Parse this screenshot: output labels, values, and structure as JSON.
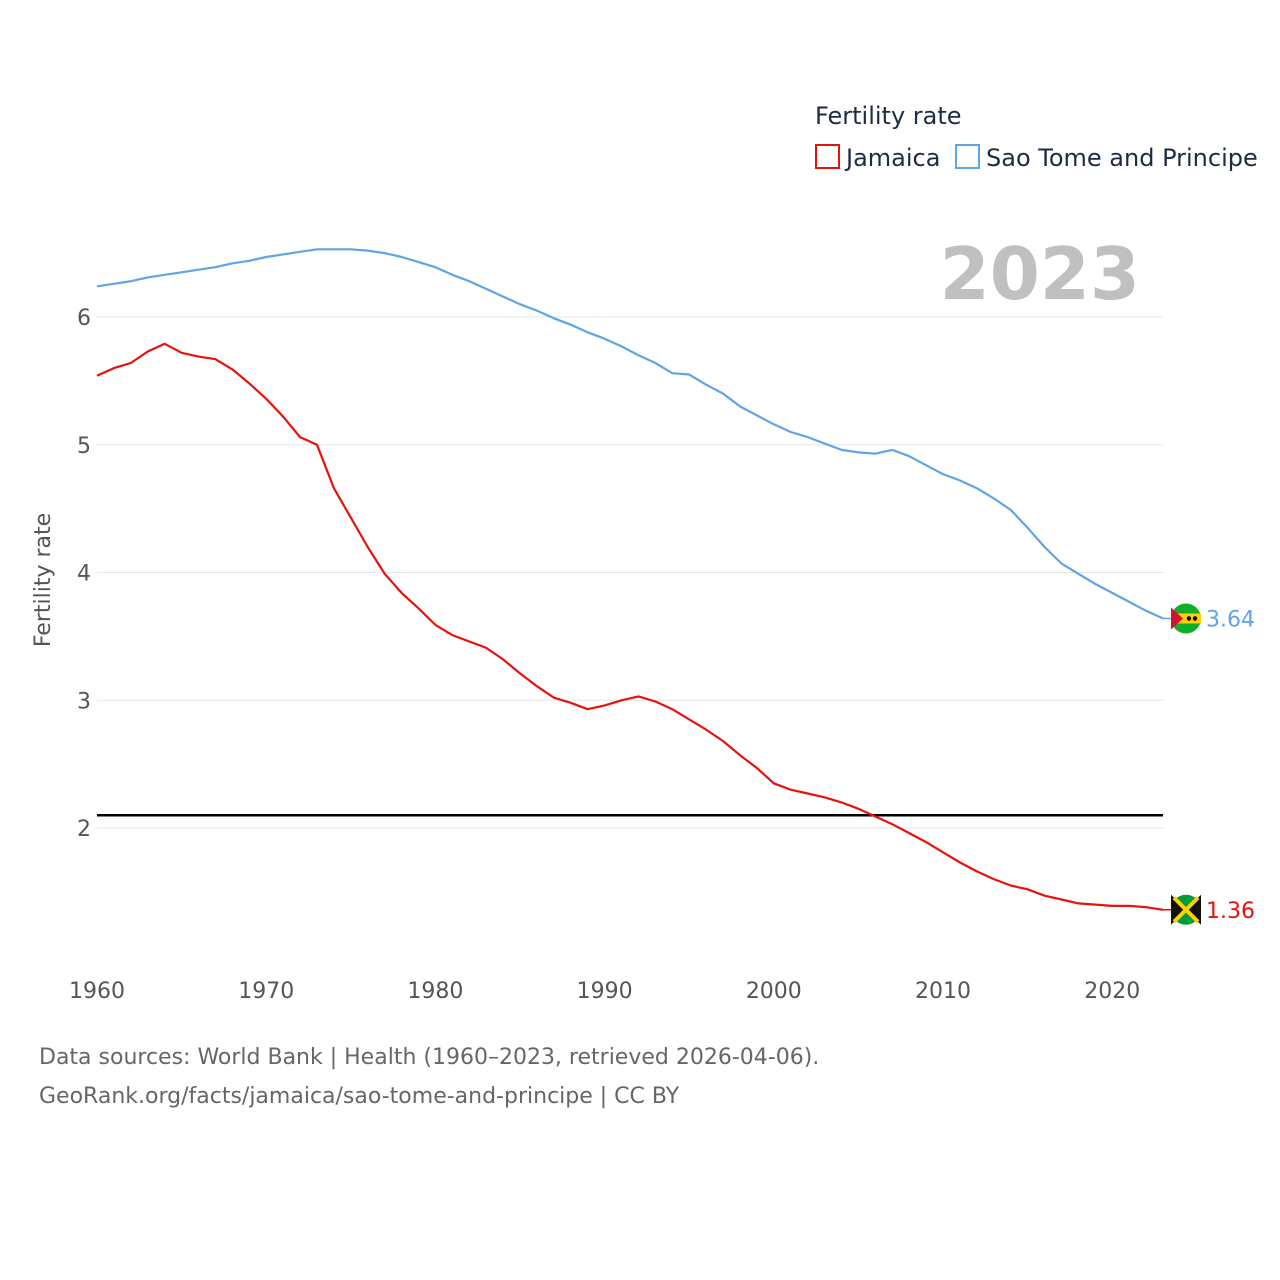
{
  "chart_data": {
    "type": "line",
    "legend_title": "Fertility rate",
    "ylabel": "Fertility rate",
    "xlim": [
      1960,
      2023
    ],
    "ylim": [
      1.0,
      7.0
    ],
    "yticks": [
      2,
      3,
      4,
      5,
      6
    ],
    "xticks": [
      1960,
      1970,
      1980,
      1990,
      2000,
      2010,
      2020
    ],
    "year_label": "2023",
    "reference_line": 2.1,
    "legend_position": "top-right",
    "series": [
      {
        "name": "Jamaica",
        "color": "#e8120c",
        "end_label": "1.36",
        "flag_icon": "jamaica-flag-icon",
        "x": [
          1960,
          1961,
          1962,
          1963,
          1964,
          1965,
          1966,
          1967,
          1968,
          1969,
          1970,
          1971,
          1972,
          1973,
          1974,
          1975,
          1976,
          1977,
          1978,
          1979,
          1980,
          1981,
          1982,
          1983,
          1984,
          1985,
          1986,
          1987,
          1988,
          1989,
          1990,
          1991,
          1992,
          1993,
          1994,
          1995,
          1996,
          1997,
          1998,
          1999,
          2000,
          2001,
          2002,
          2003,
          2004,
          2005,
          2006,
          2007,
          2008,
          2009,
          2010,
          2011,
          2012,
          2013,
          2014,
          2015,
          2016,
          2017,
          2018,
          2019,
          2020,
          2021,
          2022,
          2023
        ],
        "values": [
          5.54,
          5.6,
          5.64,
          5.73,
          5.79,
          5.72,
          5.69,
          5.67,
          5.59,
          5.48,
          5.36,
          5.22,
          5.06,
          5.0,
          4.66,
          4.43,
          4.2,
          3.99,
          3.84,
          3.72,
          3.59,
          3.51,
          3.46,
          3.41,
          3.32,
          3.21,
          3.11,
          3.02,
          2.98,
          2.93,
          2.96,
          3.0,
          3.03,
          2.99,
          2.93,
          2.85,
          2.77,
          2.68,
          2.57,
          2.47,
          2.35,
          2.3,
          2.27,
          2.24,
          2.2,
          2.15,
          2.09,
          2.03,
          1.96,
          1.89,
          1.81,
          1.73,
          1.66,
          1.6,
          1.55,
          1.52,
          1.47,
          1.44,
          1.41,
          1.4,
          1.39,
          1.39,
          1.38,
          1.36
        ]
      },
      {
        "name": "Sao Tome and Principe",
        "color": "#5fa5e6",
        "end_label": "3.64",
        "flag_icon": "sao-tome-flag-icon",
        "x": [
          1960,
          1961,
          1962,
          1963,
          1964,
          1965,
          1966,
          1967,
          1968,
          1969,
          1970,
          1971,
          1972,
          1973,
          1974,
          1975,
          1976,
          1977,
          1978,
          1979,
          1980,
          1981,
          1982,
          1983,
          1984,
          1985,
          1986,
          1987,
          1988,
          1989,
          1990,
          1991,
          1992,
          1993,
          1994,
          1995,
          1996,
          1997,
          1998,
          1999,
          2000,
          2001,
          2002,
          2003,
          2004,
          2005,
          2006,
          2007,
          2008,
          2009,
          2010,
          2011,
          2012,
          2013,
          2014,
          2015,
          2016,
          2017,
          2018,
          2019,
          2020,
          2021,
          2022,
          2023
        ],
        "values": [
          6.24,
          6.26,
          6.28,
          6.31,
          6.33,
          6.35,
          6.37,
          6.39,
          6.42,
          6.44,
          6.47,
          6.49,
          6.51,
          6.53,
          6.53,
          6.53,
          6.52,
          6.5,
          6.47,
          6.43,
          6.39,
          6.33,
          6.28,
          6.22,
          6.16,
          6.1,
          6.05,
          5.99,
          5.94,
          5.88,
          5.83,
          5.77,
          5.7,
          5.64,
          5.56,
          5.55,
          5.47,
          5.4,
          5.3,
          5.23,
          5.16,
          5.1,
          5.06,
          5.01,
          4.96,
          4.94,
          4.93,
          4.96,
          4.91,
          4.84,
          4.77,
          4.72,
          4.66,
          4.58,
          4.49,
          4.35,
          4.2,
          4.07,
          3.99,
          3.91,
          3.84,
          3.77,
          3.7,
          3.64
        ]
      }
    ]
  },
  "footer": {
    "source_line": "Data sources: World Bank | Health (1960–2023, retrieved 2026-04-06).",
    "url_line": "GeoRank.org/facts/jamaica/sao-tome-and-principe | CC BY"
  }
}
